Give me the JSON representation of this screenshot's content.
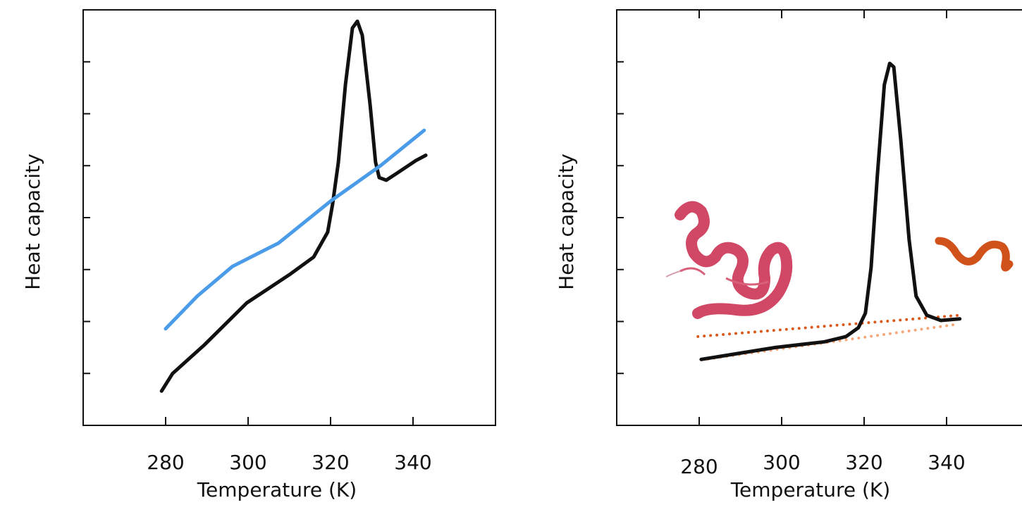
{
  "chart_data": [
    {
      "type": "line",
      "xlabel": "Temperature (K)",
      "ylabel": "Heat capacity",
      "xlim": [
        260,
        360
      ],
      "ylim": [
        0,
        8
      ],
      "xticks": [
        280,
        300,
        320,
        340
      ],
      "yticks": [
        1,
        2,
        3,
        4,
        5,
        6,
        7
      ],
      "top_ticks": false,
      "series": [
        {
          "color": "#111111",
          "style": "solid",
          "x": [
            279,
            281.7,
            289.4,
            299.7,
            310,
            315.9,
            319.3,
            320.5,
            321.9,
            323.6,
            325.3,
            326.5,
            327.7,
            329.6,
            330.9,
            331.8,
            333.5,
            336.4,
            340.7,
            343.1
          ],
          "values": [
            0.66,
            1.0,
            1.55,
            2.36,
            2.9,
            3.24,
            3.72,
            4.26,
            5.07,
            6.56,
            7.65,
            7.78,
            7.51,
            6.16,
            5.07,
            4.77,
            4.72,
            4.87,
            5.1,
            5.2
          ]
        },
        {
          "color": "#4a9be8",
          "style": "solid",
          "x": [
            280,
            287.7,
            296.2,
            307.4,
            320.2,
            332.1,
            342.7
          ],
          "values": [
            1.86,
            2.49,
            3.06,
            3.51,
            4.33,
            5.0,
            5.68
          ]
        }
      ]
    },
    {
      "type": "line",
      "xlabel": "Temperature (K)",
      "ylabel": "Heat capacity",
      "xlim": [
        260,
        360
      ],
      "ylim": [
        0,
        8
      ],
      "xticks": [
        280,
        300,
        320,
        340
      ],
      "yticks": [
        1,
        2,
        3,
        4,
        5,
        6,
        7
      ],
      "top_ticks": true,
      "series": [
        {
          "color": "#d9581a",
          "style": "dotted",
          "x": [
            279.7,
            343.2
          ],
          "values": [
            1.71,
            2.12
          ]
        },
        {
          "color": "#f4a77a",
          "style": "dotted",
          "x": [
            280.6,
            342.9
          ],
          "values": [
            1.26,
            1.95
          ]
        },
        {
          "color": "#111111",
          "style": "solid",
          "x": [
            280.5,
            298.5,
            310.4,
            315.6,
            318.6,
            320.3,
            321.7,
            323.2,
            324.9,
            326.2,
            327.2,
            328.9,
            330.9,
            332.6,
            335.2,
            338.6,
            343.2
          ],
          "values": [
            1.27,
            1.5,
            1.61,
            1.71,
            1.88,
            2.16,
            3.04,
            4.8,
            6.56,
            6.97,
            6.9,
            5.48,
            3.58,
            2.49,
            2.12,
            2.02,
            2.05
          ]
        }
      ]
    }
  ]
}
